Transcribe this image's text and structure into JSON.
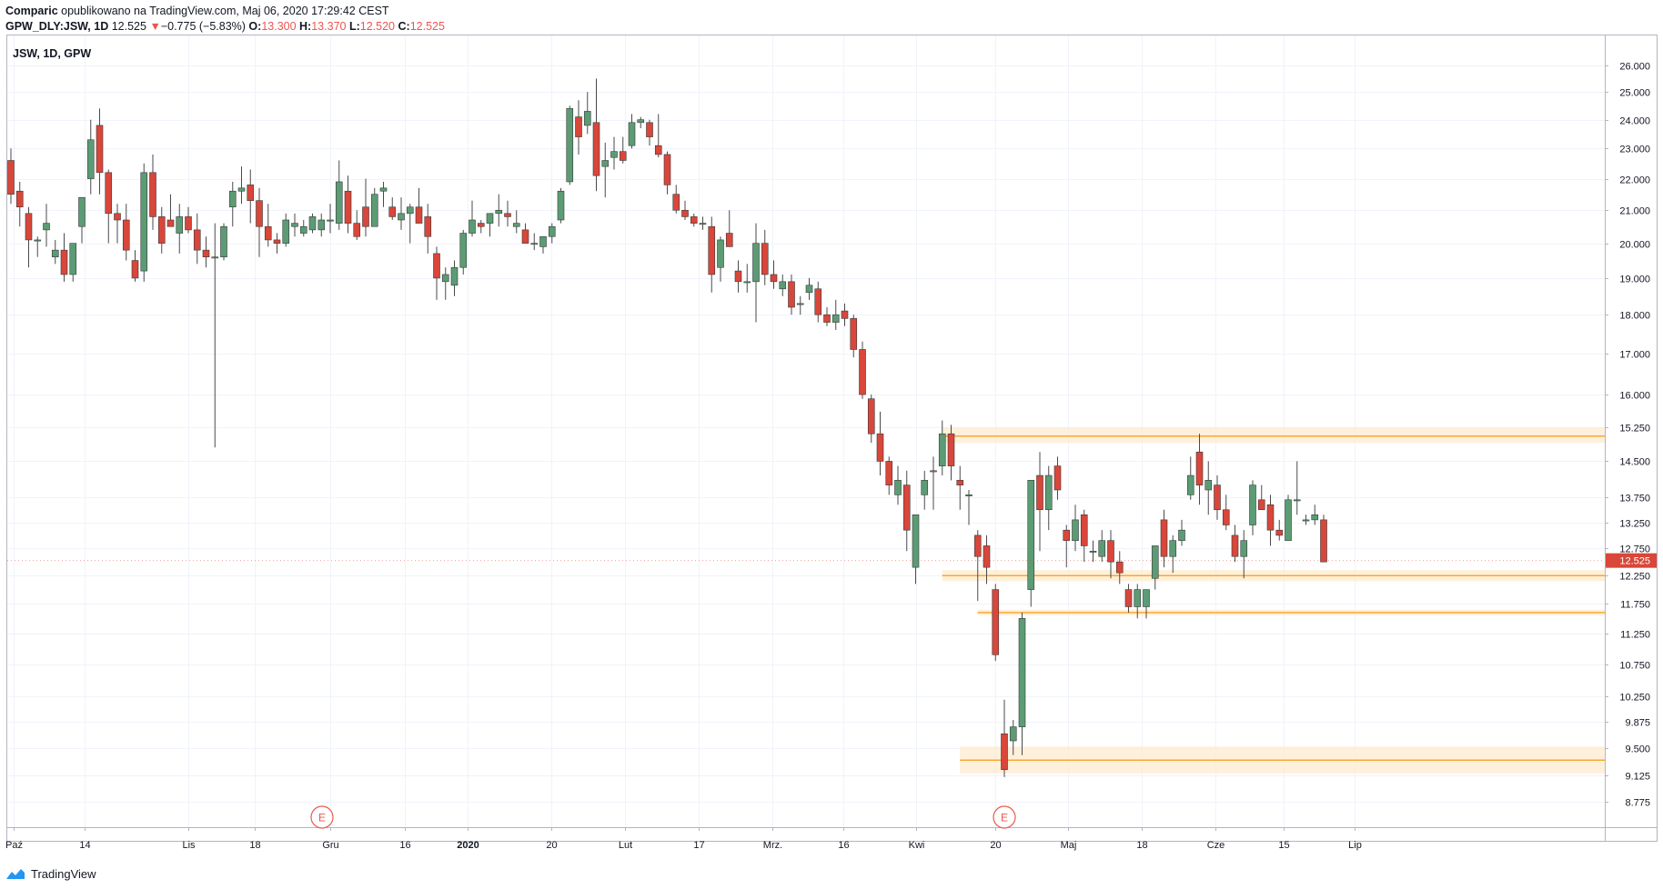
{
  "header": {
    "author": "Comparic",
    "published_text": "opublikowano na TradingView.com, Maj 06, 2020 17:29:42 CEST",
    "symbol": "GPW_DLY:JSW, 1D",
    "price": "12.525",
    "change_arrow": "▼",
    "change": "−0.775 (−5.83%)",
    "o_label": "O:",
    "o_value": "13.300",
    "h_label": "H:",
    "h_value": "13.370",
    "l_label": "L:",
    "l_value": "12.520",
    "c_label": "C:",
    "c_value": "12.525"
  },
  "chart_label": "JSW, 1D, GPW",
  "footer": {
    "brand": "TradingView"
  },
  "colors": {
    "up": "#5b9c74",
    "down": "#d9463a",
    "line": "#f7a834",
    "zone": "#fde9cc",
    "price_tag": "#d9463a",
    "earnings": "#e8584c"
  },
  "chart_data": {
    "type": "candlestick",
    "y_scale": "log",
    "y_ticks": [
      "26.000",
      "25.000",
      "24.000",
      "23.000",
      "22.000",
      "21.000",
      "20.000",
      "19.000",
      "18.000",
      "17.000",
      "16.000",
      "15.250",
      "14.500",
      "13.750",
      "13.250",
      "12.750",
      "12.250",
      "11.750",
      "11.250",
      "10.750",
      "10.250",
      "9.875",
      "9.500",
      "9.125",
      "8.775"
    ],
    "last_price": "12.525",
    "x_labels": [
      "Paź",
      "14",
      "Lis",
      "18",
      "Gru",
      "16",
      "2020",
      "20",
      "Lut",
      "17",
      "Mrz.",
      "16",
      "Kwi",
      "20",
      "Maj",
      "18",
      "Cze",
      "15",
      "Lip"
    ],
    "earnings_markers": [
      {
        "label": "E",
        "near": "18 Lis"
      },
      {
        "label": "E",
        "near": "16 Mrz."
      }
    ],
    "levels": [
      {
        "from": "2020-02-28",
        "price": 15.05,
        "zone": [
          14.9,
          15.25
        ]
      },
      {
        "from": "2020-02-28",
        "price": 12.25,
        "zone": [
          12.15,
          12.35
        ]
      },
      {
        "from": "2020-03-18",
        "price": 11.6,
        "zone": [
          11.55,
          11.65
        ]
      },
      {
        "from": "2020-03-16",
        "price": 9.33,
        "zone": [
          9.15,
          9.52
        ]
      }
    ],
    "candles": [
      [
        22.6,
        23.0,
        21.2,
        21.5
      ],
      [
        21.6,
        21.9,
        20.5,
        21.1
      ],
      [
        20.9,
        21.1,
        19.3,
        20.1
      ],
      [
        20.1,
        20.2,
        19.6,
        20.1
      ],
      [
        20.4,
        21.2,
        19.9,
        20.6
      ],
      [
        19.6,
        20.1,
        19.4,
        19.8
      ],
      [
        19.8,
        20.3,
        18.9,
        19.1
      ],
      [
        19.1,
        20.0,
        18.9,
        20.0
      ],
      [
        20.5,
        21.4,
        20.0,
        21.4
      ],
      [
        22.0,
        24.0,
        21.5,
        23.3
      ],
      [
        23.8,
        24.4,
        21.5,
        22.2
      ],
      [
        22.2,
        22.3,
        20.0,
        20.9
      ],
      [
        20.9,
        21.2,
        20.0,
        20.7
      ],
      [
        20.7,
        21.2,
        19.5,
        19.8
      ],
      [
        19.5,
        19.8,
        18.9,
        19.0
      ],
      [
        19.2,
        22.5,
        18.9,
        22.2
      ],
      [
        22.2,
        22.8,
        20.4,
        20.8
      ],
      [
        20.8,
        21.1,
        19.7,
        20.0
      ],
      [
        20.7,
        21.5,
        20.5,
        20.5
      ],
      [
        20.3,
        21.2,
        19.7,
        20.8
      ],
      [
        20.8,
        21.1,
        20.3,
        20.4
      ],
      [
        20.4,
        20.9,
        19.4,
        19.8
      ],
      [
        19.8,
        20.2,
        19.3,
        19.6
      ],
      [
        19.6,
        20.6,
        14.8,
        19.6
      ],
      [
        19.6,
        20.6,
        19.5,
        20.5
      ],
      [
        21.1,
        21.9,
        20.5,
        21.6
      ],
      [
        21.6,
        22.4,
        21.2,
        21.7
      ],
      [
        21.8,
        22.3,
        20.6,
        21.3
      ],
      [
        21.3,
        21.7,
        19.6,
        20.5
      ],
      [
        20.5,
        21.2,
        19.9,
        20.1
      ],
      [
        20.1,
        20.3,
        19.7,
        20.0
      ],
      [
        20.0,
        20.9,
        19.9,
        20.7
      ],
      [
        20.5,
        20.9,
        20.2,
        20.6
      ],
      [
        20.3,
        20.7,
        20.2,
        20.5
      ],
      [
        20.4,
        20.9,
        20.3,
        20.8
      ],
      [
        20.4,
        20.9,
        20.2,
        20.7
      ],
      [
        20.7,
        21.2,
        20.3,
        20.7
      ],
      [
        20.6,
        22.6,
        20.4,
        21.9
      ],
      [
        21.6,
        22.1,
        20.3,
        20.6
      ],
      [
        20.6,
        21.0,
        20.1,
        20.2
      ],
      [
        21.1,
        22.0,
        20.2,
        20.5
      ],
      [
        20.5,
        21.7,
        20.5,
        21.5
      ],
      [
        21.6,
        21.9,
        21.1,
        21.7
      ],
      [
        21.1,
        21.4,
        20.7,
        20.8
      ],
      [
        20.7,
        21.4,
        20.4,
        20.9
      ],
      [
        20.9,
        21.2,
        20.0,
        21.1
      ],
      [
        21.1,
        21.7,
        20.6,
        20.6
      ],
      [
        20.8,
        21.2,
        19.7,
        20.2
      ],
      [
        19.7,
        19.9,
        18.4,
        19.0
      ],
      [
        18.9,
        19.3,
        18.4,
        19.1
      ],
      [
        18.8,
        19.5,
        18.5,
        19.3
      ],
      [
        19.3,
        20.4,
        19.1,
        20.3
      ],
      [
        20.3,
        21.3,
        20.2,
        20.7
      ],
      [
        20.6,
        20.7,
        20.3,
        20.5
      ],
      [
        20.6,
        20.9,
        20.2,
        20.9
      ],
      [
        20.9,
        21.5,
        20.5,
        21.0
      ],
      [
        20.9,
        21.3,
        20.5,
        20.8
      ],
      [
        20.5,
        21.0,
        20.3,
        20.6
      ],
      [
        20.4,
        20.6,
        20.0,
        20.0
      ],
      [
        20.0,
        20.3,
        19.8,
        20.0
      ],
      [
        19.9,
        20.1,
        19.7,
        20.2
      ],
      [
        20.2,
        20.6,
        20.0,
        20.5
      ],
      [
        20.7,
        21.7,
        20.6,
        21.6
      ],
      [
        21.9,
        24.5,
        21.8,
        24.4
      ],
      [
        24.1,
        24.7,
        22.8,
        23.4
      ],
      [
        23.8,
        25.0,
        23.5,
        24.3
      ],
      [
        23.9,
        25.5,
        21.6,
        22.1
      ],
      [
        22.4,
        23.2,
        21.4,
        22.6
      ],
      [
        22.7,
        23.4,
        22.3,
        22.9
      ],
      [
        22.9,
        23.4,
        22.5,
        22.6
      ],
      [
        23.1,
        24.2,
        23.0,
        23.9
      ],
      [
        23.9,
        24.1,
        23.7,
        24.0
      ],
      [
        23.9,
        24.0,
        23.1,
        23.4
      ],
      [
        23.1,
        24.2,
        22.7,
        22.8
      ],
      [
        22.8,
        22.9,
        21.5,
        21.8
      ],
      [
        21.5,
        21.8,
        20.9,
        21.0
      ],
      [
        21.0,
        21.3,
        20.7,
        20.8
      ],
      [
        20.8,
        20.9,
        20.5,
        20.6
      ],
      [
        20.6,
        20.8,
        20.4,
        20.6
      ],
      [
        20.5,
        20.8,
        18.6,
        19.1
      ],
      [
        19.3,
        20.2,
        18.9,
        20.1
      ],
      [
        20.3,
        21.0,
        19.9,
        19.9
      ],
      [
        19.2,
        19.5,
        18.6,
        18.9
      ],
      [
        18.9,
        19.4,
        18.6,
        18.9
      ],
      [
        18.9,
        20.6,
        17.8,
        20.0
      ],
      [
        20.0,
        20.4,
        18.8,
        19.1
      ],
      [
        19.1,
        19.5,
        18.7,
        18.9
      ],
      [
        18.7,
        19.1,
        18.5,
        18.9
      ],
      [
        18.9,
        19.1,
        18.0,
        18.2
      ],
      [
        18.3,
        18.5,
        18.0,
        18.3
      ],
      [
        18.6,
        19.0,
        18.4,
        18.8
      ],
      [
        18.7,
        18.9,
        17.8,
        18.0
      ],
      [
        18.0,
        18.2,
        17.7,
        17.8
      ],
      [
        17.8,
        18.4,
        17.6,
        18.0
      ],
      [
        18.1,
        18.3,
        17.7,
        17.9
      ],
      [
        17.9,
        18.0,
        16.9,
        17.1
      ],
      [
        17.1,
        17.3,
        15.9,
        16.0
      ],
      [
        15.9,
        16.0,
        14.9,
        15.1
      ],
      [
        15.1,
        15.6,
        14.2,
        14.5
      ],
      [
        14.5,
        14.6,
        13.8,
        14.0
      ],
      [
        13.8,
        14.4,
        13.6,
        14.1
      ],
      [
        14.0,
        14.3,
        12.7,
        13.1
      ],
      [
        12.4,
        13.4,
        12.1,
        13.4
      ],
      [
        13.8,
        14.3,
        13.5,
        14.1
      ],
      [
        14.3,
        14.6,
        13.5,
        14.3
      ],
      [
        14.4,
        15.4,
        14.2,
        15.1
      ],
      [
        15.1,
        15.3,
        14.1,
        14.4
      ],
      [
        14.1,
        14.4,
        13.5,
        14.0
      ],
      [
        13.8,
        13.9,
        13.2,
        13.8
      ],
      [
        13.0,
        13.1,
        11.8,
        12.6
      ],
      [
        12.8,
        13.0,
        12.1,
        12.4
      ],
      [
        12.0,
        12.1,
        10.8,
        10.9
      ],
      [
        9.7,
        10.2,
        9.1,
        9.2
      ],
      [
        9.6,
        9.9,
        9.4,
        9.8
      ],
      [
        9.8,
        11.6,
        9.4,
        11.5
      ],
      [
        12.0,
        14.1,
        11.7,
        14.1
      ],
      [
        14.2,
        14.7,
        12.7,
        13.5
      ],
      [
        13.5,
        14.4,
        13.1,
        14.2
      ],
      [
        14.4,
        14.6,
        13.7,
        13.9
      ],
      [
        13.1,
        13.2,
        12.4,
        12.9
      ],
      [
        12.9,
        13.6,
        12.7,
        13.3
      ],
      [
        13.4,
        13.5,
        12.5,
        12.8
      ],
      [
        12.7,
        12.9,
        12.5,
        12.7
      ],
      [
        12.6,
        13.1,
        12.5,
        12.9
      ],
      [
        12.9,
        13.1,
        12.2,
        12.5
      ],
      [
        12.5,
        12.7,
        12.1,
        12.3
      ],
      [
        12.0,
        12.1,
        11.6,
        11.7
      ],
      [
        11.7,
        12.1,
        11.5,
        12.0
      ],
      [
        11.7,
        12.0,
        11.5,
        12.0
      ],
      [
        12.2,
        12.8,
        12.0,
        12.8
      ],
      [
        13.3,
        13.5,
        12.4,
        12.6
      ],
      [
        12.6,
        13.0,
        12.3,
        12.9
      ],
      [
        12.9,
        13.3,
        12.8,
        13.1
      ],
      [
        13.8,
        14.6,
        13.7,
        14.2
      ],
      [
        14.7,
        15.1,
        13.6,
        14.0
      ],
      [
        13.9,
        14.5,
        13.4,
        14.1
      ],
      [
        14.0,
        14.2,
        13.3,
        13.5
      ],
      [
        13.5,
        13.8,
        13.1,
        13.2
      ],
      [
        13.0,
        13.2,
        12.5,
        12.6
      ],
      [
        12.6,
        13.1,
        12.2,
        12.9
      ],
      [
        13.2,
        14.1,
        13.0,
        14.0
      ],
      [
        13.7,
        14.0,
        13.5,
        13.5
      ],
      [
        13.6,
        13.8,
        12.8,
        13.1
      ],
      [
        13.1,
        13.3,
        12.9,
        13.0
      ],
      [
        12.9,
        13.8,
        12.9,
        13.7
      ],
      [
        13.7,
        14.5,
        13.4,
        13.7
      ],
      [
        13.3,
        13.4,
        13.2,
        13.3
      ],
      [
        13.3,
        13.6,
        13.2,
        13.4
      ],
      [
        13.3,
        13.4,
        12.5,
        12.5
      ]
    ]
  }
}
